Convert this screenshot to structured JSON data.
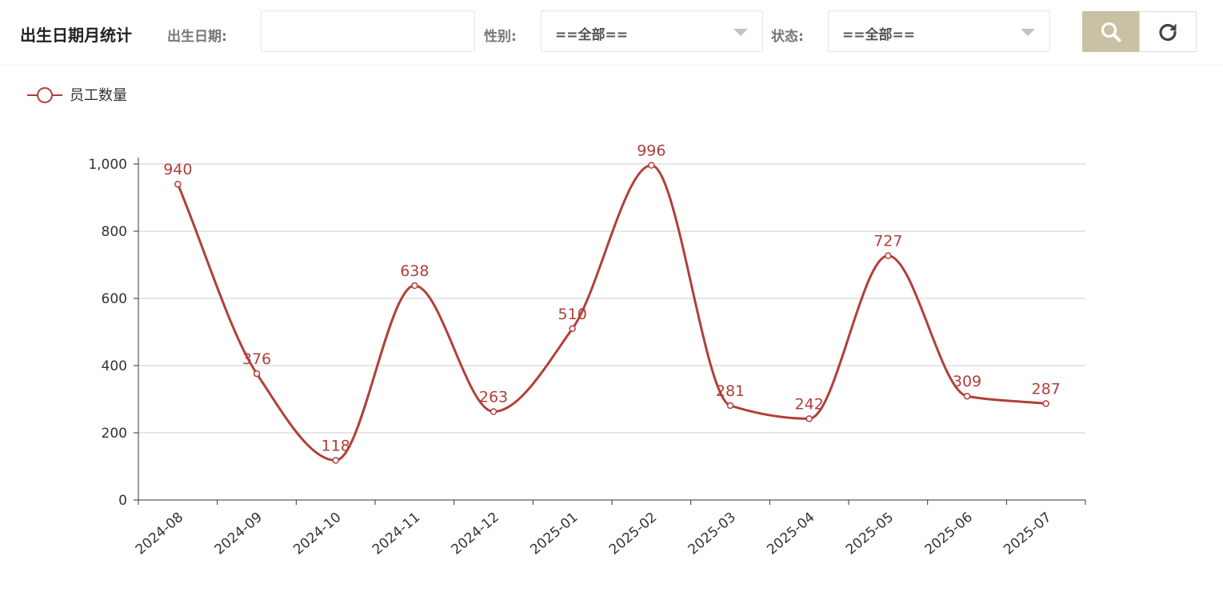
{
  "header": {
    "title": "出生日期月统计",
    "birthdate_label": "出生日期:",
    "birthdate_value": "",
    "gender_label": "性别:",
    "gender_value": "==全部==",
    "status_label": "状态:",
    "status_value": "==全部==",
    "search_icon": "search-icon",
    "reset_icon": "refresh-icon"
  },
  "colors": {
    "series": "#b0403a",
    "search_button": "#c9c1a3",
    "grid": "#cccccc",
    "axis": "#333333"
  },
  "chart_data": {
    "type": "line",
    "smooth": true,
    "legend": "top-left",
    "grid": true,
    "categories": [
      "2024-08",
      "2024-09",
      "2024-10",
      "2024-11",
      "2024-12",
      "2025-01",
      "2025-02",
      "2025-03",
      "2025-04",
      "2025-05",
      "2025-06",
      "2025-07"
    ],
    "series": [
      {
        "name": "员工数量",
        "values": [
          940,
          376,
          118,
          638,
          263,
          510,
          996,
          281,
          242,
          727,
          309,
          287
        ]
      }
    ],
    "ylim": [
      0,
      1000
    ],
    "yticks": [
      "0",
      "200",
      "400",
      "600",
      "800",
      "1,000"
    ],
    "ytick_values": [
      0,
      200,
      400,
      600,
      800,
      1000
    ]
  }
}
